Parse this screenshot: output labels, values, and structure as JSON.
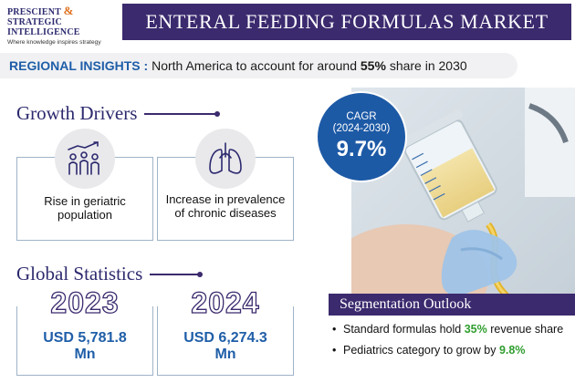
{
  "logo": {
    "line1_a": "PRESCIENT",
    "line1_amp": "&",
    "line1_b": "STRATEGIC",
    "line2": "INTELLIGENCE",
    "tagline": "Where knowledge inspires strategy"
  },
  "title": "ENTERAL FEEDING FORMULAS MARKET",
  "regional": {
    "lead": "REGIONAL INSIGHTS :",
    "text_before": "North America to account for around",
    "percent": "55%",
    "text_after": "share in 2030"
  },
  "growth_drivers": {
    "heading": "Growth Drivers",
    "items": [
      {
        "icon": "elderly-people-growth-icon",
        "text": "Rise in geriatric population"
      },
      {
        "icon": "lungs-icon",
        "text": "Increase in prevalence of chronic diseases"
      }
    ]
  },
  "cagr": {
    "label1": "CAGR",
    "label2": "(2024-2030)",
    "value": "9.7%"
  },
  "global_statistics": {
    "heading": "Global Statistics",
    "items": [
      {
        "year": "2023",
        "value_line1": "USD 5,781.8",
        "value_line2": "Mn"
      },
      {
        "year": "2024",
        "value_line1": "USD 6,274.3",
        "value_line2": "Mn"
      }
    ]
  },
  "segmentation": {
    "heading": "Segmentation Outlook",
    "items": [
      {
        "before": "Standard formulas hold",
        "highlight": "35%",
        "after": "revenue share"
      },
      {
        "before": "Pediatrics category to grow by",
        "highlight": "9.8%",
        "after": ""
      }
    ]
  },
  "colors": {
    "brand_purple": "#3b2a6e",
    "accent_blue": "#1f5ea8",
    "highlight_green": "#2f9e2f",
    "logo_orange": "#e0701f"
  }
}
